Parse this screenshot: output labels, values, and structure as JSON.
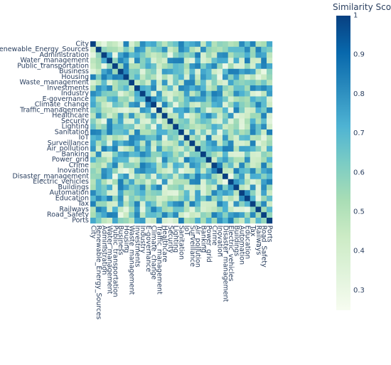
{
  "chart_data": {
    "type": "heatmap",
    "title": "",
    "xlabel": "",
    "ylabel": "",
    "labels": [
      "City",
      "Renewable_Energy_Sources",
      "Administration",
      "Water_management",
      "Public_transportation",
      "Business",
      "Housing",
      "Waste_management",
      "Investments",
      "Industry",
      "E-governance",
      "Climate_change",
      "Traffic_management",
      "Healthcare",
      "Security",
      "Lighting",
      "Sanitation",
      "IoT",
      "Surveillance",
      "Air_pollution",
      "Banking",
      "Power_grid",
      "Crime",
      "Inovation",
      "Disaster_management",
      "Electric_vehicles",
      "Buildings",
      "Automation",
      "Education",
      "Tax",
      "Railways",
      "Road_Safety",
      "Ports"
    ],
    "diagonal_value": 1,
    "off_diagonal_value_range": [
      0.3,
      0.85
    ],
    "colorbar": {
      "title": "Similarity Score",
      "range": [
        0.25,
        1.0
      ],
      "ticks": [
        0.3,
        0.4,
        0.5,
        0.6,
        0.7,
        0.8,
        0.9,
        1
      ],
      "tick_labels": [
        "0.3",
        "0.4",
        "0.5",
        "0.6",
        "0.7",
        "0.8",
        "0.9",
        "1"
      ],
      "colors": [
        "#f7fcf0",
        "#e0f3db",
        "#ccebc5",
        "#a8ddb5",
        "#7bccc4",
        "#4eb3d3",
        "#2b8cbe",
        "#0868ac",
        "#084081"
      ]
    }
  }
}
